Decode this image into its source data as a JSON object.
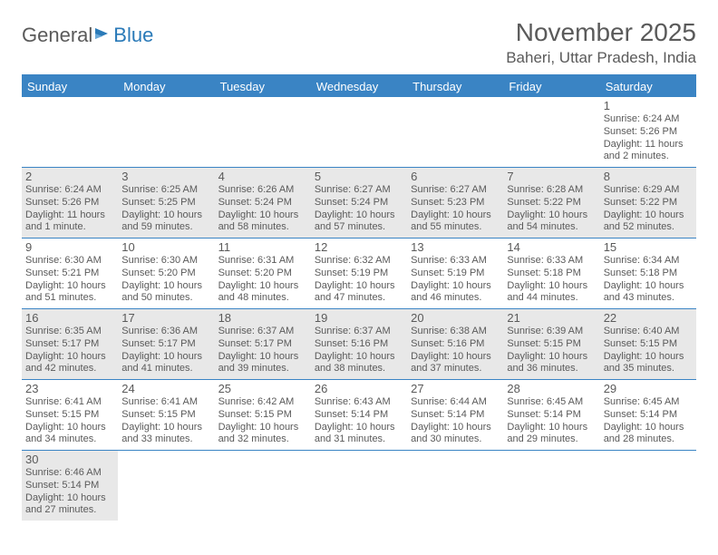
{
  "logo": {
    "part1": "General",
    "part2": "Blue"
  },
  "title": "November 2025",
  "location": "Baheri, Uttar Pradesh, India",
  "headers": [
    "Sunday",
    "Monday",
    "Tuesday",
    "Wednesday",
    "Thursday",
    "Friday",
    "Saturday"
  ],
  "colors": {
    "header_bg": "#3a84c4",
    "header_text": "#ffffff",
    "even_bg": "#e8e8e8",
    "odd_bg": "#ffffff",
    "text": "#5a5a5a",
    "rule": "#3a84c4"
  },
  "weeks": [
    {
      "parity": "empty",
      "days": [
        null,
        null,
        null,
        null,
        null,
        null,
        {
          "n": "1",
          "sunrise": "Sunrise: 6:24 AM",
          "sunset": "Sunset: 5:26 PM",
          "daylight": "Daylight: 11 hours and 2 minutes."
        }
      ]
    },
    {
      "parity": "even",
      "days": [
        {
          "n": "2",
          "sunrise": "Sunrise: 6:24 AM",
          "sunset": "Sunset: 5:26 PM",
          "daylight": "Daylight: 11 hours and 1 minute."
        },
        {
          "n": "3",
          "sunrise": "Sunrise: 6:25 AM",
          "sunset": "Sunset: 5:25 PM",
          "daylight": "Daylight: 10 hours and 59 minutes."
        },
        {
          "n": "4",
          "sunrise": "Sunrise: 6:26 AM",
          "sunset": "Sunset: 5:24 PM",
          "daylight": "Daylight: 10 hours and 58 minutes."
        },
        {
          "n": "5",
          "sunrise": "Sunrise: 6:27 AM",
          "sunset": "Sunset: 5:24 PM",
          "daylight": "Daylight: 10 hours and 57 minutes."
        },
        {
          "n": "6",
          "sunrise": "Sunrise: 6:27 AM",
          "sunset": "Sunset: 5:23 PM",
          "daylight": "Daylight: 10 hours and 55 minutes."
        },
        {
          "n": "7",
          "sunrise": "Sunrise: 6:28 AM",
          "sunset": "Sunset: 5:22 PM",
          "daylight": "Daylight: 10 hours and 54 minutes."
        },
        {
          "n": "8",
          "sunrise": "Sunrise: 6:29 AM",
          "sunset": "Sunset: 5:22 PM",
          "daylight": "Daylight: 10 hours and 52 minutes."
        }
      ]
    },
    {
      "parity": "odd",
      "days": [
        {
          "n": "9",
          "sunrise": "Sunrise: 6:30 AM",
          "sunset": "Sunset: 5:21 PM",
          "daylight": "Daylight: 10 hours and 51 minutes."
        },
        {
          "n": "10",
          "sunrise": "Sunrise: 6:30 AM",
          "sunset": "Sunset: 5:20 PM",
          "daylight": "Daylight: 10 hours and 50 minutes."
        },
        {
          "n": "11",
          "sunrise": "Sunrise: 6:31 AM",
          "sunset": "Sunset: 5:20 PM",
          "daylight": "Daylight: 10 hours and 48 minutes."
        },
        {
          "n": "12",
          "sunrise": "Sunrise: 6:32 AM",
          "sunset": "Sunset: 5:19 PM",
          "daylight": "Daylight: 10 hours and 47 minutes."
        },
        {
          "n": "13",
          "sunrise": "Sunrise: 6:33 AM",
          "sunset": "Sunset: 5:19 PM",
          "daylight": "Daylight: 10 hours and 46 minutes."
        },
        {
          "n": "14",
          "sunrise": "Sunrise: 6:33 AM",
          "sunset": "Sunset: 5:18 PM",
          "daylight": "Daylight: 10 hours and 44 minutes."
        },
        {
          "n": "15",
          "sunrise": "Sunrise: 6:34 AM",
          "sunset": "Sunset: 5:18 PM",
          "daylight": "Daylight: 10 hours and 43 minutes."
        }
      ]
    },
    {
      "parity": "even",
      "days": [
        {
          "n": "16",
          "sunrise": "Sunrise: 6:35 AM",
          "sunset": "Sunset: 5:17 PM",
          "daylight": "Daylight: 10 hours and 42 minutes."
        },
        {
          "n": "17",
          "sunrise": "Sunrise: 6:36 AM",
          "sunset": "Sunset: 5:17 PM",
          "daylight": "Daylight: 10 hours and 41 minutes."
        },
        {
          "n": "18",
          "sunrise": "Sunrise: 6:37 AM",
          "sunset": "Sunset: 5:17 PM",
          "daylight": "Daylight: 10 hours and 39 minutes."
        },
        {
          "n": "19",
          "sunrise": "Sunrise: 6:37 AM",
          "sunset": "Sunset: 5:16 PM",
          "daylight": "Daylight: 10 hours and 38 minutes."
        },
        {
          "n": "20",
          "sunrise": "Sunrise: 6:38 AM",
          "sunset": "Sunset: 5:16 PM",
          "daylight": "Daylight: 10 hours and 37 minutes."
        },
        {
          "n": "21",
          "sunrise": "Sunrise: 6:39 AM",
          "sunset": "Sunset: 5:15 PM",
          "daylight": "Daylight: 10 hours and 36 minutes."
        },
        {
          "n": "22",
          "sunrise": "Sunrise: 6:40 AM",
          "sunset": "Sunset: 5:15 PM",
          "daylight": "Daylight: 10 hours and 35 minutes."
        }
      ]
    },
    {
      "parity": "odd",
      "days": [
        {
          "n": "23",
          "sunrise": "Sunrise: 6:41 AM",
          "sunset": "Sunset: 5:15 PM",
          "daylight": "Daylight: 10 hours and 34 minutes."
        },
        {
          "n": "24",
          "sunrise": "Sunrise: 6:41 AM",
          "sunset": "Sunset: 5:15 PM",
          "daylight": "Daylight: 10 hours and 33 minutes."
        },
        {
          "n": "25",
          "sunrise": "Sunrise: 6:42 AM",
          "sunset": "Sunset: 5:15 PM",
          "daylight": "Daylight: 10 hours and 32 minutes."
        },
        {
          "n": "26",
          "sunrise": "Sunrise: 6:43 AM",
          "sunset": "Sunset: 5:14 PM",
          "daylight": "Daylight: 10 hours and 31 minutes."
        },
        {
          "n": "27",
          "sunrise": "Sunrise: 6:44 AM",
          "sunset": "Sunset: 5:14 PM",
          "daylight": "Daylight: 10 hours and 30 minutes."
        },
        {
          "n": "28",
          "sunrise": "Sunrise: 6:45 AM",
          "sunset": "Sunset: 5:14 PM",
          "daylight": "Daylight: 10 hours and 29 minutes."
        },
        {
          "n": "29",
          "sunrise": "Sunrise: 6:45 AM",
          "sunset": "Sunset: 5:14 PM",
          "daylight": "Daylight: 10 hours and 28 minutes."
        }
      ]
    },
    {
      "parity": "even",
      "last": true,
      "days": [
        {
          "n": "30",
          "sunrise": "Sunrise: 6:46 AM",
          "sunset": "Sunset: 5:14 PM",
          "daylight": "Daylight: 10 hours and 27 minutes."
        },
        null,
        null,
        null,
        null,
        null,
        null
      ]
    }
  ]
}
